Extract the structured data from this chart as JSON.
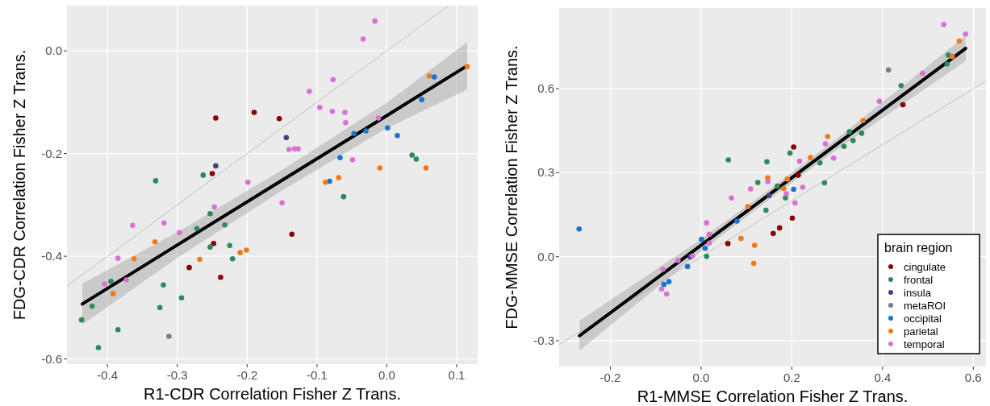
{
  "chart_data": [
    {
      "type": "scatter",
      "xlabel": "R1-CDR Correlation Fisher Z Trans.",
      "ylabel": "FDG-CDR Correlation Fisher Z Trans.",
      "xlim": [
        -0.458,
        0.13
      ],
      "ylim": [
        -0.61,
        0.088
      ],
      "xticks": [
        -0.4,
        -0.3,
        -0.2,
        -0.1,
        {
          "value": 0,
          "label": "0.0"
        },
        0.1
      ],
      "yticks": [
        {
          "value": -0.6,
          "label": "-0.6"
        },
        {
          "value": -0.4,
          "label": "-0.4"
        },
        {
          "value": -0.2,
          "label": "-0.2"
        },
        {
          "value": 0,
          "label": "0.0"
        }
      ],
      "grid": true,
      "legend": false,
      "marker": "circle",
      "series": [
        {
          "type": "line",
          "color": "#c0c0c0",
          "x": [
            -0.458,
            0.088
          ],
          "values": [
            -0.458,
            0.088
          ],
          "marker": "none"
        },
        {
          "type": "line",
          "color": "#000000",
          "x": [
            -0.436,
            -0.3,
            -0.15,
            0,
            0.115
          ],
          "values": [
            -0.493,
            -0.378,
            -0.252,
            -0.126,
            -0.029
          ],
          "lower": [
            -0.533,
            -0.403,
            -0.272,
            -0.151,
            -0.075
          ],
          "upper": [
            -0.453,
            -0.353,
            -0.232,
            -0.101,
            0.017
          ],
          "marker": "none"
        },
        {
          "color": "#8b0000",
          "x": [
            -0.245,
            -0.19,
            -0.154,
            -0.25,
            -0.136,
            -0.248,
            -0.283,
            -0.238
          ],
          "values": [
            -0.131,
            -0.12,
            -0.132,
            -0.239,
            -0.357,
            -0.375,
            -0.422,
            -0.441
          ]
        },
        {
          "color": "#2e8b57",
          "x": [
            -0.331,
            -0.263,
            -0.253,
            -0.232,
            -0.272,
            -0.253,
            -0.225,
            -0.221,
            -0.395,
            -0.32,
            -0.294,
            -0.422,
            -0.325,
            -0.437,
            -0.385,
            -0.413,
            0.036,
            0.042,
            -0.062
          ],
          "values": [
            -0.253,
            -0.242,
            -0.317,
            -0.339,
            -0.346,
            -0.382,
            -0.379,
            -0.405,
            -0.449,
            -0.456,
            -0.481,
            -0.497,
            -0.5,
            -0.524,
            -0.543,
            -0.578,
            -0.203,
            -0.211,
            -0.284
          ]
        },
        {
          "color": "#483d8b",
          "x": [
            -0.245,
            -0.144
          ],
          "values": [
            -0.224,
            -0.169
          ]
        },
        {
          "color": "#708090",
          "x": [
            -0.312
          ],
          "values": [
            -0.556
          ]
        },
        {
          "color": "#1874cd",
          "x": [
            -0.082,
            -0.067,
            -0.047,
            -0.03,
            0.001,
            0.015,
            0.05,
            0.068
          ],
          "values": [
            -0.254,
            -0.208,
            -0.161,
            -0.156,
            -0.15,
            -0.165,
            -0.095,
            -0.051
          ]
        },
        {
          "color": "#f07a1a",
          "x": [
            -0.332,
            -0.362,
            -0.268,
            -0.21,
            -0.201,
            -0.392,
            -0.088,
            -0.069,
            -0.01,
            0.056,
            0.061,
            0.115
          ],
          "values": [
            -0.372,
            -0.405,
            -0.406,
            -0.393,
            -0.388,
            -0.473,
            -0.256,
            -0.247,
            -0.228,
            -0.228,
            -0.049,
            -0.031
          ]
        },
        {
          "color": "#da70d6",
          "x": [
            -0.199,
            -0.247,
            -0.15,
            -0.364,
            -0.319,
            -0.297,
            -0.385,
            -0.404,
            -0.373,
            -0.14,
            -0.132,
            -0.127,
            -0.017,
            -0.034,
            -0.077,
            -0.111,
            -0.096,
            -0.078,
            -0.06,
            -0.059,
            -0.049,
            -0.012
          ],
          "values": [
            -0.256,
            -0.304,
            -0.296,
            -0.34,
            -0.335,
            -0.354,
            -0.404,
            -0.454,
            -0.446,
            -0.192,
            -0.191,
            -0.191,
            0.058,
            0.023,
            -0.056,
            -0.079,
            -0.11,
            -0.118,
            -0.12,
            -0.14,
            -0.212,
            -0.131
          ]
        }
      ]
    },
    {
      "type": "scatter",
      "xlabel": "R1-MMSE Correlation Fisher Z Trans.",
      "ylabel": "FDG-MMSE Correlation Fisher Z Trans.",
      "legend_title": "brain region",
      "xlim": [
        -0.313,
        0.628
      ],
      "ylim": [
        -0.392,
        0.888
      ],
      "xticks": [
        -0.2,
        {
          "value": 0,
          "label": "0.0"
        },
        0.2,
        0.4,
        0.6
      ],
      "yticks": [
        -0.3,
        {
          "value": 0,
          "label": "0.0"
        },
        0.3,
        0.6
      ],
      "grid": true,
      "legend": "bottom right",
      "marker": "circle",
      "series": [
        {
          "type": "line",
          "color": "#c0c0c0",
          "x": [
            -0.313,
            0.628
          ],
          "values": [
            -0.313,
            0.628
          ],
          "marker": "none"
        },
        {
          "type": "line",
          "color": "#000000",
          "x": [
            -0.268,
            0,
            0.15,
            0.3,
            0.583
          ],
          "values": [
            -0.282,
            0.041,
            0.222,
            0.403,
            0.744
          ],
          "lower": [
            -0.335,
            0.019,
            0.204,
            0.383,
            0.699
          ],
          "upper": [
            -0.229,
            0.063,
            0.24,
            0.423,
            0.789
          ],
          "marker": "none"
        },
        {
          "name": "cingulate",
          "color": "#8b0000",
          "x": [
            0.059,
            0.159,
            0.173,
            0.201,
            0.204,
            0.214,
            0.445
          ],
          "values": [
            0.047,
            0.083,
            0.103,
            0.138,
            0.392,
            0.291,
            0.543
          ]
        },
        {
          "name": "frontal",
          "color": "#2e8b57",
          "x": [
            0.06,
            0.145,
            0.125,
            0.143,
            0.012,
            0.168,
            0.186,
            0.196,
            0.262,
            0.272,
            0.315,
            0.327,
            0.335,
            0.354,
            0.441,
            0.545,
            0.542
          ],
          "values": [
            0.346,
            0.339,
            0.265,
            0.166,
            0.001,
            0.252,
            0.21,
            0.37,
            0.335,
            0.264,
            0.394,
            0.446,
            0.415,
            0.441,
            0.611,
            0.72,
            0.688
          ]
        },
        {
          "name": "insula",
          "color": "#483d8b",
          "x": [
            -0.024,
            0.15
          ],
          "values": [
            -0.001,
            0.219
          ]
        },
        {
          "name": "metaROI",
          "color": "#708090",
          "x": [
            0.413
          ],
          "values": [
            0.667
          ]
        },
        {
          "name": "occipital",
          "color": "#1874cd",
          "x": [
            -0.269,
            -0.082,
            -0.071,
            -0.03,
            0.001,
            0.009,
            0.079,
            0.204
          ],
          "values": [
            0.099,
            -0.099,
            -0.089,
            -0.035,
            0.062,
            0.03,
            0.127,
            0.241
          ]
        },
        {
          "name": "parietal",
          "color": "#f07a1a",
          "x": [
            0.088,
            0.118,
            0.116,
            0.103,
            0.147,
            0.182,
            0.19,
            0.241,
            0.279,
            0.357,
            0.569,
            0.554
          ],
          "values": [
            0.065,
            0.041,
            -0.024,
            0.179,
            0.282,
            0.244,
            0.277,
            0.354,
            0.429,
            0.486,
            0.77,
            0.715
          ]
        },
        {
          "name": "temporal",
          "color": "#da70d6",
          "x": [
            -0.084,
            -0.087,
            -0.076,
            -0.051,
            -0.019,
            0.012,
            0.018,
            0.018,
            0.067,
            0.109,
            0.147,
            0.188,
            0.207,
            0.224,
            0.217,
            0.274,
            0.292,
            0.393,
            0.488,
            0.535,
            0.583
          ],
          "values": [
            -0.045,
            -0.115,
            -0.133,
            -0.013,
            0.003,
            0.121,
            0.08,
            0.049,
            0.21,
            0.242,
            0.268,
            0.225,
            0.192,
            0.248,
            0.341,
            0.403,
            0.352,
            0.555,
            0.655,
            0.829,
            0.795
          ]
        }
      ]
    }
  ]
}
